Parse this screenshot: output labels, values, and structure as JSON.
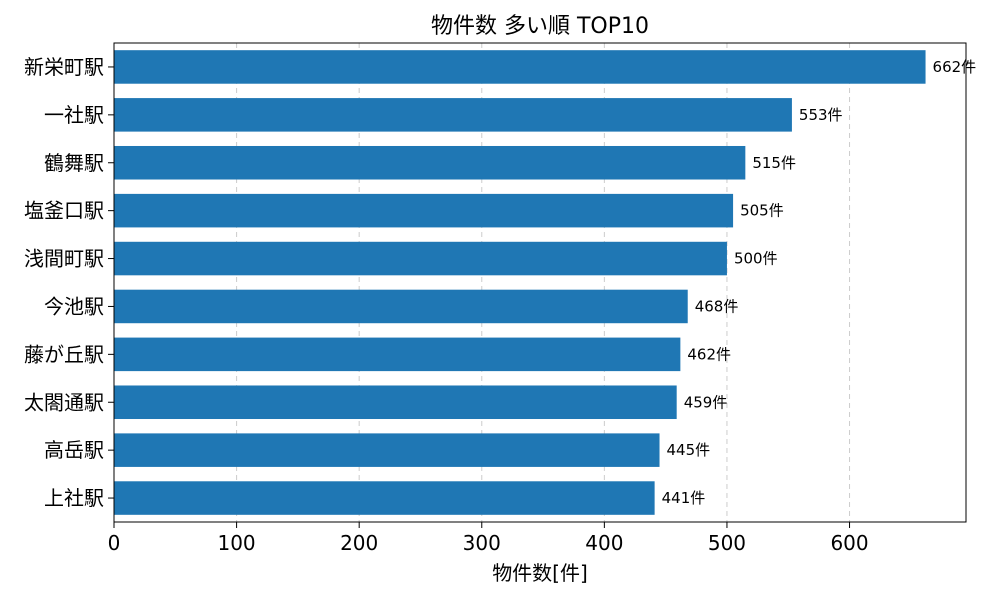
{
  "chart_data": {
    "type": "bar",
    "orientation": "horizontal",
    "title": "物件数 多い順 TOP10",
    "xlabel": "物件数[件]",
    "ylabel": "",
    "xlim": [
      0,
      695
    ],
    "xticks": [
      0,
      100,
      200,
      300,
      400,
      500,
      600
    ],
    "grid": "x-dashed",
    "bar_color": "#1f77b4",
    "label_suffix": "件",
    "categories": [
      "新栄町駅",
      "一社駅",
      "鶴舞駅",
      "塩釜口駅",
      "浅間町駅",
      "今池駅",
      "藤が丘駅",
      "太閤通駅",
      "高岳駅",
      "上社駅"
    ],
    "values": [
      662,
      553,
      515,
      505,
      500,
      468,
      462,
      459,
      445,
      441
    ],
    "value_labels": [
      "662件",
      "553件",
      "515件",
      "505件",
      "500件",
      "468件",
      "462件",
      "459件",
      "445件",
      "441件"
    ]
  }
}
